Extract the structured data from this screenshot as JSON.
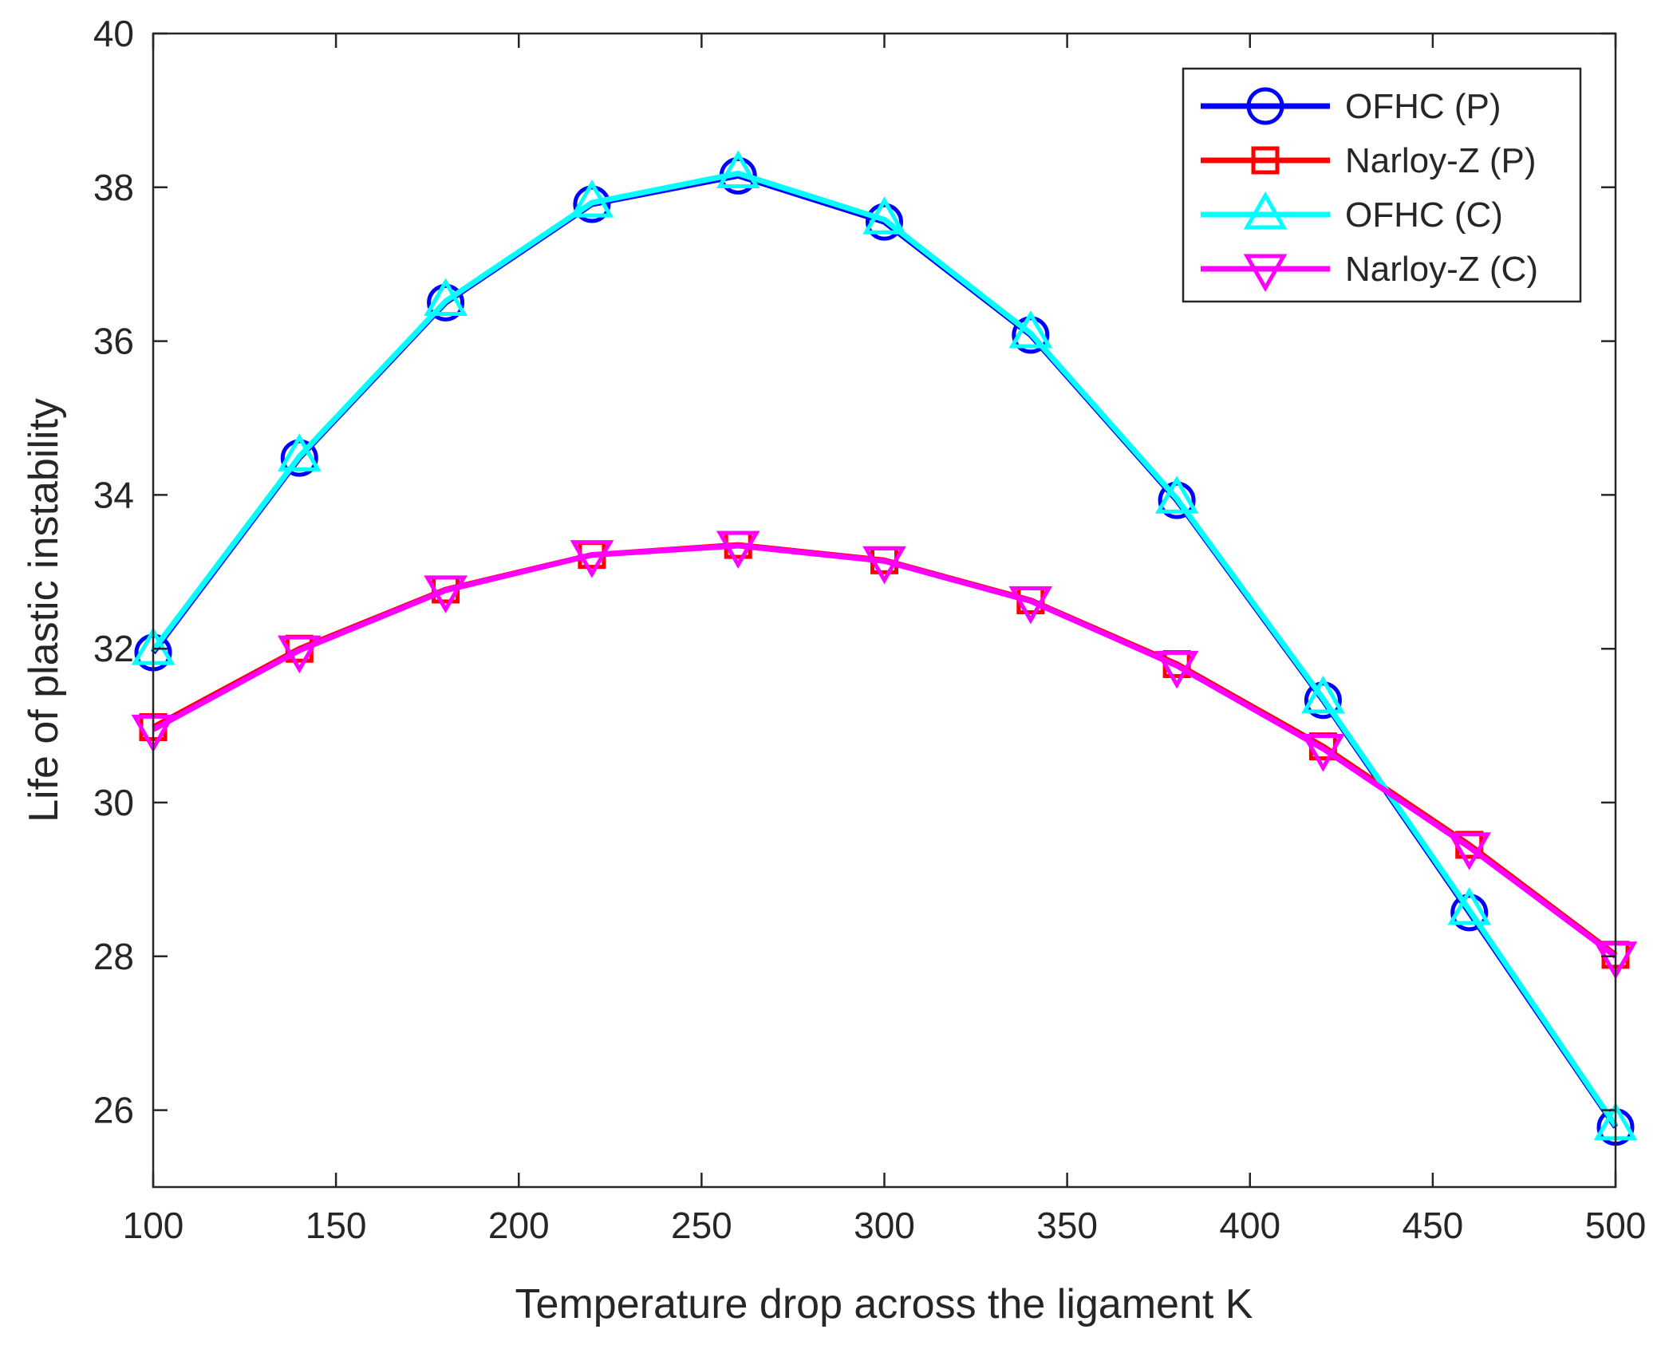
{
  "chart_data": {
    "type": "line",
    "title": "",
    "xlabel": "Temperature drop across the ligament K",
    "ylabel": "Life of plastic instability",
    "xlim": [
      100,
      500
    ],
    "ylim": [
      25,
      40
    ],
    "xticks": [
      100,
      150,
      200,
      250,
      300,
      350,
      400,
      450,
      500
    ],
    "yticks": [
      26,
      28,
      30,
      32,
      34,
      36,
      38,
      40
    ],
    "grid": false,
    "legend_position": "top-right",
    "x": [
      100,
      140,
      180,
      220,
      260,
      300,
      340,
      380,
      420,
      460,
      500
    ],
    "series": [
      {
        "name": "OFHC (P)",
        "color": "#0000ff",
        "marker": "circle",
        "values": [
          31.95,
          34.48,
          36.5,
          37.78,
          38.15,
          37.55,
          36.08,
          33.93,
          31.33,
          28.57,
          25.78
        ]
      },
      {
        "name": "Narloy-Z (P)",
        "color": "#ff0000",
        "marker": "square",
        "values": [
          30.98,
          32.0,
          32.77,
          33.22,
          33.35,
          33.15,
          32.63,
          31.8,
          30.73,
          29.45,
          28.02
        ]
      },
      {
        "name": "OFHC (C)",
        "color": "#00ffff",
        "marker": "triangle-up",
        "values": [
          31.98,
          34.5,
          36.52,
          37.8,
          38.18,
          37.58,
          36.1,
          33.95,
          31.35,
          28.6,
          25.8
        ]
      },
      {
        "name": "Narloy-Z (C)",
        "color": "#ff00ff",
        "marker": "triangle-down",
        "values": [
          30.95,
          31.98,
          32.76,
          33.22,
          33.34,
          33.14,
          32.62,
          31.78,
          30.7,
          29.42,
          28.0
        ]
      }
    ]
  }
}
